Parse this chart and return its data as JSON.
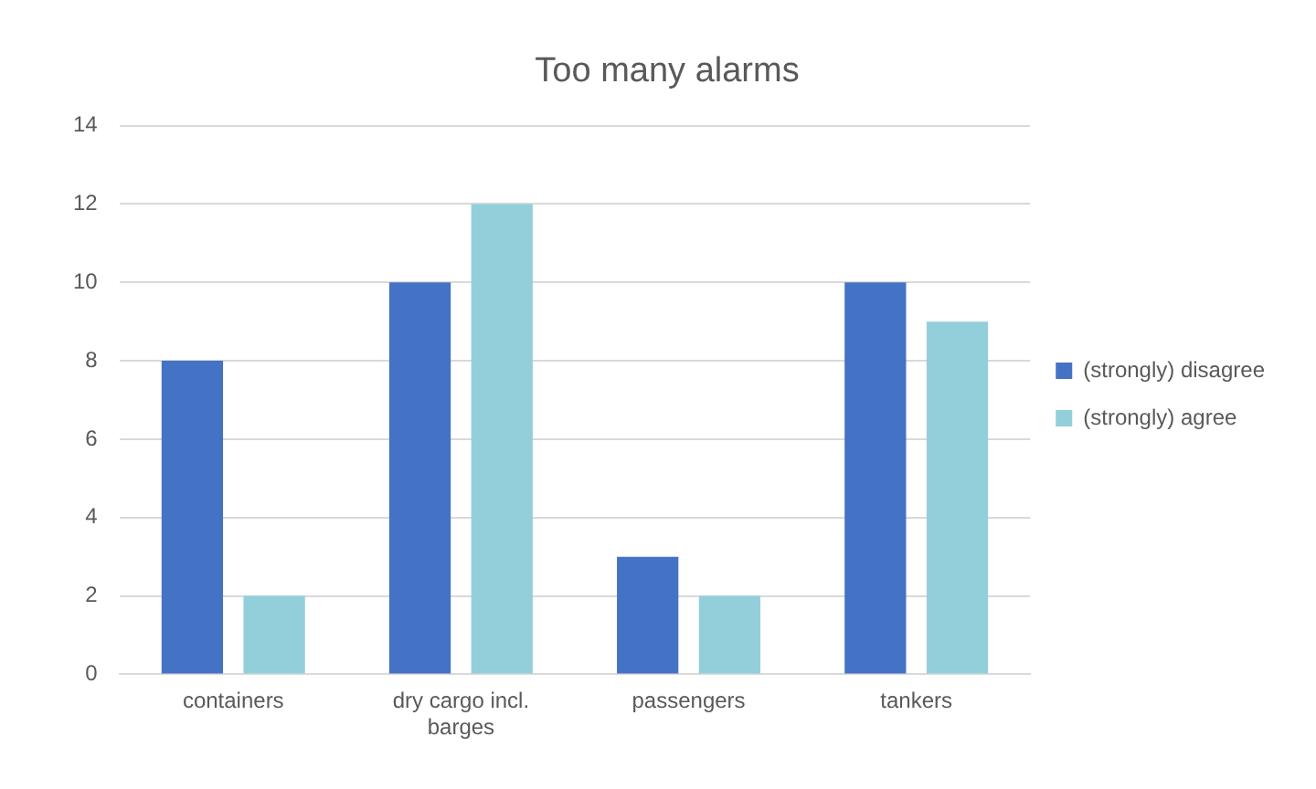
{
  "chart_data": {
    "type": "bar",
    "title": "Too many alarms",
    "categories": [
      "containers",
      "dry cargo incl. barges",
      "passengers",
      "tankers"
    ],
    "series": [
      {
        "name": "(strongly) disagree",
        "color": "#4472c4",
        "values": [
          8,
          10,
          3,
          10
        ]
      },
      {
        "name": "(strongly) agree",
        "color": "#92cfdb",
        "values": [
          2,
          12,
          2,
          9
        ]
      }
    ],
    "ylim": [
      0,
      14
    ],
    "yticks": [
      0,
      2,
      4,
      6,
      8,
      10,
      12,
      14
    ],
    "grid": "y",
    "legend": "right"
  }
}
